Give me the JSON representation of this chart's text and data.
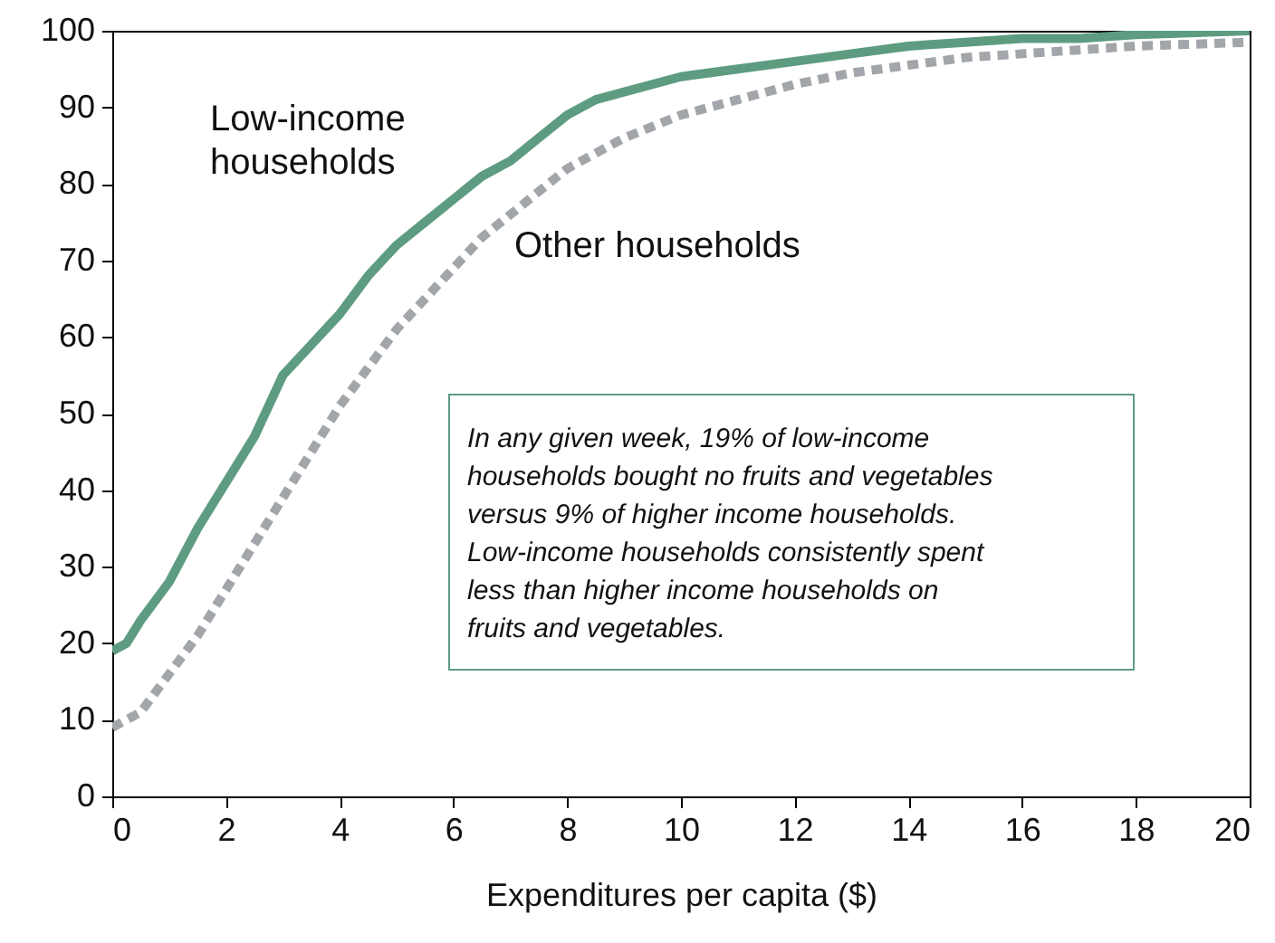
{
  "chart_data": {
    "type": "line",
    "xlabel": "Expenditures per capita ($)",
    "xlim": [
      0,
      20
    ],
    "ylim": [
      0,
      100
    ],
    "xticks": [
      0,
      2,
      4,
      6,
      8,
      10,
      12,
      14,
      16,
      18,
      20
    ],
    "yticks": [
      0,
      10,
      20,
      30,
      40,
      50,
      60,
      70,
      80,
      90,
      100
    ],
    "marker": "none",
    "annotations": [
      "In any given week, 19% of low-income households bought no fruits and vegetables versus 9% of higher income households. Low-income households consistently spent less than higher income households on fruits and vegetables."
    ],
    "series": [
      {
        "name": "Low-income households",
        "color": "#5e9c82",
        "line_style": "solid",
        "x": [
          0,
          0.25,
          0.5,
          1,
          1.5,
          2,
          2.5,
          3,
          3.5,
          4,
          4.5,
          5,
          5.5,
          6,
          6.5,
          7,
          7.5,
          8,
          8.5,
          9,
          10,
          11,
          12,
          13,
          14,
          15,
          16,
          17,
          18,
          20
        ],
        "values": [
          19,
          20,
          23,
          28,
          35,
          41,
          47,
          55,
          59,
          63,
          68,
          72,
          75,
          78,
          81,
          83,
          86,
          89,
          91,
          92,
          94,
          95,
          96,
          97,
          98,
          98.5,
          99,
          99,
          99.5,
          100
        ]
      },
      {
        "name": "Other households",
        "color": "#a2a6aa",
        "line_style": "dashed",
        "x": [
          0,
          0.5,
          1,
          1.5,
          2,
          2.5,
          3,
          3.5,
          4,
          4.5,
          5,
          5.5,
          6,
          6.5,
          7,
          7.5,
          8,
          9,
          10,
          11,
          12,
          13,
          14,
          15,
          16,
          17,
          18,
          20
        ],
        "values": [
          9,
          11,
          16,
          21,
          27,
          33,
          39,
          45,
          51,
          56,
          61,
          65,
          69,
          73,
          76,
          79,
          82,
          86,
          89,
          91,
          93,
          94.5,
          95.5,
          96.5,
          97,
          97.5,
          98,
          98.5
        ]
      }
    ]
  }
}
